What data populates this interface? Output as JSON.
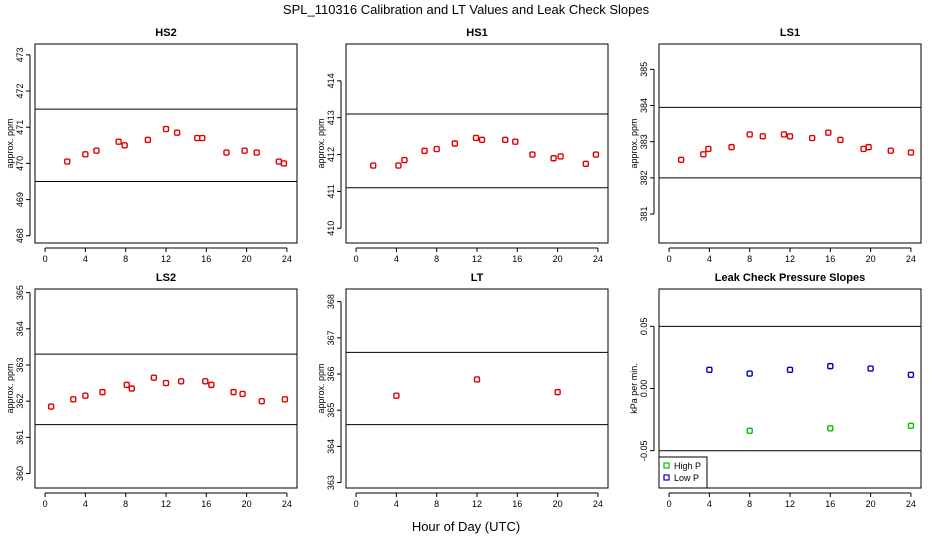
{
  "figure": {
    "title": "SPL_110316  Calibration and LT Values and Leak Check Slopes",
    "xlabel": "Hour of Day (UTC)"
  },
  "chart_data": [
    {
      "id": "hs2",
      "type": "scatter",
      "title": "HS2",
      "ylabel": "approx. ppm",
      "xlim": [
        -1,
        25
      ],
      "xticks": [
        0,
        4,
        8,
        12,
        16,
        20,
        24
      ],
      "ylim": [
        467.8,
        473.3
      ],
      "yticks": [
        468,
        469,
        470,
        471,
        472,
        473
      ],
      "hlines": [
        469.5,
        471.5
      ],
      "series": [
        {
          "name": "HS2",
          "color": "#e00000",
          "x": [
            2.2,
            4.0,
            5.1,
            7.3,
            7.9,
            10.2,
            12.0,
            13.1,
            15.1,
            15.6,
            18.0,
            19.8,
            21.0,
            23.2,
            23.7
          ],
          "y": [
            470.05,
            470.25,
            470.35,
            470.6,
            470.5,
            470.65,
            470.95,
            470.85,
            470.7,
            470.7,
            470.3,
            470.35,
            470.3,
            470.05,
            470.0
          ]
        }
      ]
    },
    {
      "id": "hs1",
      "type": "scatter",
      "title": "HS1",
      "ylabel": "approx. ppm",
      "xlim": [
        -1,
        25
      ],
      "xticks": [
        0,
        4,
        8,
        12,
        16,
        20,
        24
      ],
      "ylim": [
        409.6,
        415.0
      ],
      "yticks": [
        410,
        411,
        412,
        413,
        414
      ],
      "hlines": [
        411.1,
        413.1
      ],
      "series": [
        {
          "name": "HS1",
          "color": "#e00000",
          "x": [
            1.7,
            4.2,
            4.8,
            6.8,
            8.0,
            9.8,
            11.9,
            12.5,
            14.8,
            15.8,
            17.5,
            19.6,
            20.3,
            22.8,
            23.8
          ],
          "y": [
            411.7,
            411.7,
            411.85,
            412.1,
            412.15,
            412.3,
            412.45,
            412.4,
            412.4,
            412.35,
            412.0,
            411.9,
            411.95,
            411.75,
            412.0
          ]
        }
      ]
    },
    {
      "id": "ls1",
      "type": "scatter",
      "title": "LS1",
      "ylabel": "approx. ppm",
      "xlim": [
        -1,
        25
      ],
      "xticks": [
        0,
        4,
        8,
        12,
        16,
        20,
        24
      ],
      "ylim": [
        380.2,
        385.7
      ],
      "yticks": [
        381,
        382,
        383,
        384,
        385
      ],
      "hlines": [
        382.0,
        383.95
      ],
      "series": [
        {
          "name": "LS1",
          "color": "#e00000",
          "x": [
            1.2,
            3.4,
            3.9,
            6.2,
            8.0,
            9.3,
            11.4,
            12.0,
            14.2,
            15.8,
            17.0,
            19.3,
            19.8,
            22.0,
            24.0
          ],
          "y": [
            382.5,
            382.65,
            382.8,
            382.85,
            383.2,
            383.15,
            383.2,
            383.15,
            383.1,
            383.25,
            383.05,
            382.8,
            382.85,
            382.75,
            382.7
          ]
        }
      ]
    },
    {
      "id": "ls2",
      "type": "scatter",
      "title": "LS2",
      "ylabel": "approx. ppm",
      "xlim": [
        -1,
        25
      ],
      "xticks": [
        0,
        4,
        8,
        12,
        16,
        20,
        24
      ],
      "ylim": [
        359.6,
        365.1
      ],
      "yticks": [
        360,
        361,
        362,
        363,
        364,
        365
      ],
      "hlines": [
        361.35,
        363.3
      ],
      "series": [
        {
          "name": "LS2",
          "color": "#e00000",
          "x": [
            0.6,
            2.8,
            4.0,
            5.7,
            8.1,
            8.6,
            10.8,
            12.0,
            13.5,
            15.9,
            16.5,
            18.7,
            19.6,
            21.5,
            23.8
          ],
          "y": [
            361.85,
            362.05,
            362.15,
            362.25,
            362.45,
            362.35,
            362.65,
            362.5,
            362.55,
            362.55,
            362.45,
            362.25,
            362.2,
            362.0,
            362.05
          ]
        }
      ]
    },
    {
      "id": "lt",
      "type": "scatter",
      "title": "LT",
      "ylabel": "approx. ppm",
      "xlim": [
        -1,
        25
      ],
      "xticks": [
        0,
        4,
        8,
        12,
        16,
        20,
        24
      ],
      "ylim": [
        362.85,
        368.35
      ],
      "yticks": [
        363,
        364,
        365,
        366,
        367,
        368
      ],
      "hlines": [
        364.6,
        366.6
      ],
      "series": [
        {
          "name": "LT",
          "color": "#e00000",
          "x": [
            4.0,
            12.0,
            20.0
          ],
          "y": [
            365.4,
            365.85,
            365.5
          ]
        }
      ]
    },
    {
      "id": "leak",
      "type": "scatter",
      "title": "Leak Check Pressure Slopes",
      "ylabel": "kPa per min.",
      "xlim": [
        -1,
        25
      ],
      "xticks": [
        0,
        4,
        8,
        12,
        16,
        20,
        24
      ],
      "ylim": [
        -0.08,
        0.08
      ],
      "yticks": [
        -0.05,
        0.0,
        0.05
      ],
      "ytick_labels": [
        "-0.05",
        "0.00",
        "0.05"
      ],
      "hlines": [
        -0.05,
        0.05
      ],
      "legend": {
        "position": "bottom-left"
      },
      "series": [
        {
          "name": "High P",
          "color": "#00c000",
          "x": [
            8,
            16,
            24
          ],
          "y": [
            -0.034,
            -0.032,
            -0.03
          ]
        },
        {
          "name": "Low P",
          "color": "#0000c0",
          "x": [
            4,
            8,
            12,
            16,
            20,
            24
          ],
          "y": [
            0.015,
            0.012,
            0.015,
            0.018,
            0.016,
            0.011
          ]
        }
      ]
    }
  ]
}
